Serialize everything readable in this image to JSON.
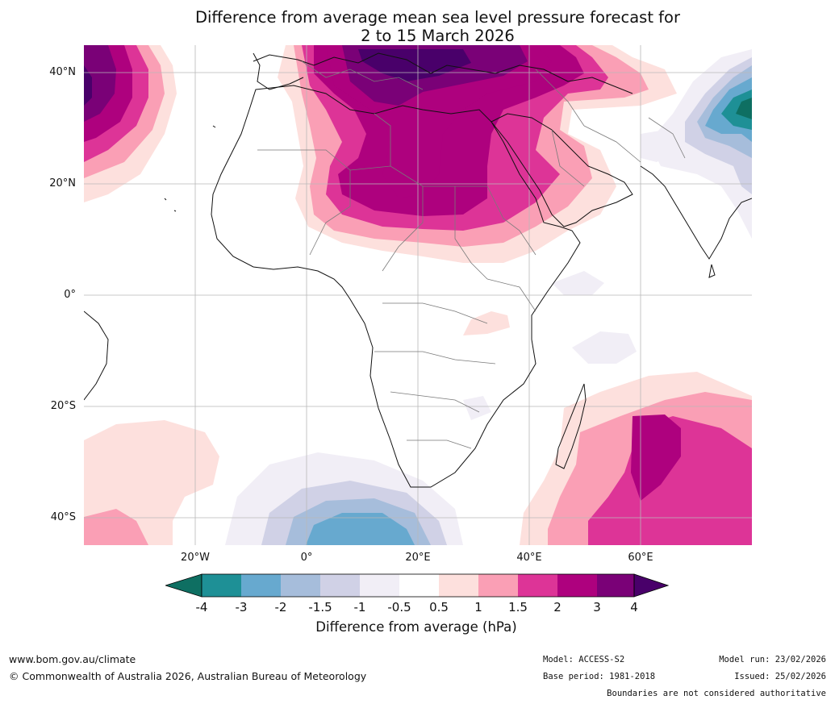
{
  "title": {
    "line1": "Difference from average mean sea level pressure forecast for",
    "line2": "2 to 15 March 2026"
  },
  "map": {
    "lat_labels": [
      "40°N",
      "20°N",
      "0°",
      "20°S",
      "40°S"
    ],
    "lon_labels": [
      "20°W",
      "0°",
      "20°E",
      "40°E",
      "60°E"
    ],
    "anomaly_regions": [
      {
        "region": "North Africa / Mediterranean / Middle East",
        "max_anomaly_hpa": 4
      },
      {
        "region": "North Atlantic near 40°N 40°W",
        "max_anomaly_hpa": 4
      },
      {
        "region": "South Indian Ocean near 30°S 60°E",
        "max_anomaly_hpa": 3
      },
      {
        "region": "South Atlantic near 40°S 10°E",
        "min_anomaly_hpa": -2
      },
      {
        "region": "Tibet / Himalaya near 35°N 80°E",
        "min_anomaly_hpa": -4
      }
    ]
  },
  "colorbar": {
    "ticks": [
      "-4",
      "-3",
      "-2",
      "-1.5",
      "-1",
      "-0.5",
      "0.5",
      "1",
      "1.5",
      "2",
      "3",
      "4"
    ],
    "colors": [
      "#0e6f62",
      "#1e9096",
      "#67a9cf",
      "#a6bddb",
      "#d0d1e6",
      "#f1eef6",
      "#ffffff",
      "#fde0dd",
      "#fa9fb5",
      "#dd3497",
      "#ae017e",
      "#7a0177",
      "#49006a"
    ],
    "label": "Difference from average (hPa)"
  },
  "footer": {
    "website": "www.bom.gov.au/climate",
    "copyright": "© Commonwealth of Australia 2026, Australian Bureau of Meteorology",
    "model": "Model: ACCESS-S2",
    "base_period": "Base period: 1981-2018",
    "model_run": "Model run: 23/02/2026",
    "issued": "Issued: 25/02/2026",
    "disclaimer": "Boundaries are not considered authoritative"
  }
}
